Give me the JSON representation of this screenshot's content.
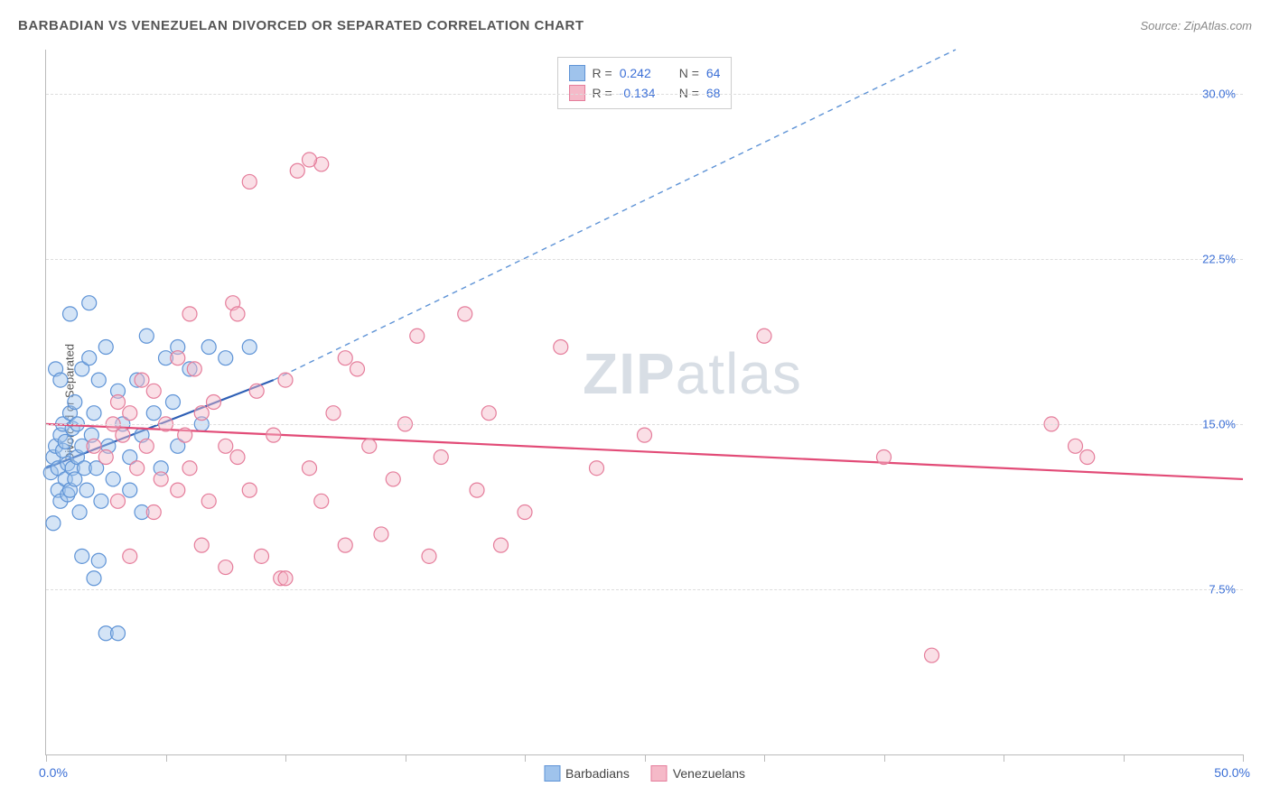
{
  "title": "BARBADIAN VS VENEZUELAN DIVORCED OR SEPARATED CORRELATION CHART",
  "source_label": "Source: ZipAtlas.com",
  "y_axis_label": "Divorced or Separated",
  "watermark_prefix": "ZIP",
  "watermark_suffix": "atlas",
  "chart": {
    "type": "scatter",
    "xlim": [
      0,
      50
    ],
    "ylim": [
      0,
      32
    ],
    "x_ticks": [
      0,
      5,
      10,
      15,
      20,
      25,
      30,
      35,
      40,
      45,
      50
    ],
    "x_min_label": "0.0%",
    "x_max_label": "50.0%",
    "y_ticks": [
      {
        "value": 7.5,
        "label": "7.5%"
      },
      {
        "value": 15.0,
        "label": "15.0%"
      },
      {
        "value": 22.5,
        "label": "22.5%"
      },
      {
        "value": 30.0,
        "label": "30.0%"
      }
    ],
    "background_color": "#ffffff",
    "grid_color": "#dddddd",
    "axis_color": "#bbbbbb",
    "tick_label_color": "#3b6fd6",
    "marker_radius": 8,
    "marker_opacity": 0.45,
    "marker_stroke_width": 1.2,
    "series": [
      {
        "name": "Barbadians",
        "fill_color": "#9fc3ec",
        "stroke_color": "#5e93d6",
        "trend_solid": {
          "x1": 0,
          "y1": 13.0,
          "x2": 9.5,
          "y2": 17.0,
          "color": "#2e5fb5",
          "width": 2.2
        },
        "trend_dashed": {
          "x1": 9.5,
          "y1": 17.0,
          "x2": 38,
          "y2": 32.0,
          "color": "#5e93d6",
          "width": 1.4,
          "dash": "6 5"
        },
        "R": "0.242",
        "N": "64",
        "points": [
          [
            0.2,
            12.8
          ],
          [
            0.3,
            13.5
          ],
          [
            0.4,
            14.0
          ],
          [
            0.5,
            13.0
          ],
          [
            0.5,
            12.0
          ],
          [
            0.6,
            14.5
          ],
          [
            0.6,
            11.5
          ],
          [
            0.7,
            15.0
          ],
          [
            0.7,
            13.8
          ],
          [
            0.8,
            12.5
          ],
          [
            0.8,
            14.2
          ],
          [
            0.9,
            13.2
          ],
          [
            0.9,
            11.8
          ],
          [
            1.0,
            15.5
          ],
          [
            1.0,
            12.0
          ],
          [
            1.1,
            14.8
          ],
          [
            1.1,
            13.0
          ],
          [
            1.2,
            16.0
          ],
          [
            1.2,
            12.5
          ],
          [
            1.3,
            13.5
          ],
          [
            1.3,
            15.0
          ],
          [
            1.4,
            11.0
          ],
          [
            1.5,
            14.0
          ],
          [
            1.5,
            17.5
          ],
          [
            1.6,
            13.0
          ],
          [
            1.7,
            12.0
          ],
          [
            1.8,
            18.0
          ],
          [
            1.9,
            14.5
          ],
          [
            2.0,
            15.5
          ],
          [
            2.1,
            13.0
          ],
          [
            2.2,
            17.0
          ],
          [
            2.3,
            11.5
          ],
          [
            2.5,
            18.5
          ],
          [
            2.6,
            14.0
          ],
          [
            2.8,
            12.5
          ],
          [
            3.0,
            16.5
          ],
          [
            3.2,
            15.0
          ],
          [
            3.5,
            13.5
          ],
          [
            3.8,
            17.0
          ],
          [
            4.0,
            14.5
          ],
          [
            4.2,
            19.0
          ],
          [
            4.5,
            15.5
          ],
          [
            4.8,
            13.0
          ],
          [
            5.0,
            18.0
          ],
          [
            5.3,
            16.0
          ],
          [
            5.5,
            14.0
          ],
          [
            6.0,
            17.5
          ],
          [
            6.5,
            15.0
          ],
          [
            1.0,
            20.0
          ],
          [
            1.8,
            20.5
          ],
          [
            2.0,
            8.0
          ],
          [
            2.5,
            5.5
          ],
          [
            3.0,
            5.5
          ],
          [
            0.4,
            17.5
          ],
          [
            0.6,
            17.0
          ],
          [
            0.3,
            10.5
          ],
          [
            1.5,
            9.0
          ],
          [
            2.2,
            8.8
          ],
          [
            3.5,
            12.0
          ],
          [
            4.0,
            11.0
          ],
          [
            5.5,
            18.5
          ],
          [
            6.8,
            18.5
          ],
          [
            7.5,
            18.0
          ],
          [
            8.5,
            18.5
          ]
        ]
      },
      {
        "name": "Venezuelans",
        "fill_color": "#f5b9c8",
        "stroke_color": "#e57d9b",
        "trend_solid": {
          "x1": 0,
          "y1": 15.0,
          "x2": 50,
          "y2": 12.5,
          "color": "#e24b77",
          "width": 2.2
        },
        "R": "-0.134",
        "N": "68",
        "points": [
          [
            2.0,
            14.0
          ],
          [
            2.5,
            13.5
          ],
          [
            3.0,
            16.0
          ],
          [
            3.2,
            14.5
          ],
          [
            3.5,
            15.5
          ],
          [
            3.8,
            13.0
          ],
          [
            4.0,
            17.0
          ],
          [
            4.2,
            14.0
          ],
          [
            4.5,
            16.5
          ],
          [
            4.8,
            12.5
          ],
          [
            5.0,
            15.0
          ],
          [
            5.5,
            18.0
          ],
          [
            5.8,
            14.5
          ],
          [
            6.0,
            13.0
          ],
          [
            6.2,
            17.5
          ],
          [
            6.5,
            15.5
          ],
          [
            6.8,
            11.5
          ],
          [
            7.0,
            16.0
          ],
          [
            7.5,
            14.0
          ],
          [
            7.8,
            20.5
          ],
          [
            8.0,
            13.5
          ],
          [
            8.5,
            12.0
          ],
          [
            8.8,
            16.5
          ],
          [
            9.0,
            9.0
          ],
          [
            9.5,
            14.5
          ],
          [
            9.8,
            8.0
          ],
          [
            10.0,
            17.0
          ],
          [
            10.5,
            26.5
          ],
          [
            11.0,
            13.0
          ],
          [
            11.5,
            11.5
          ],
          [
            12.0,
            15.5
          ],
          [
            12.5,
            9.5
          ],
          [
            13.0,
            17.5
          ],
          [
            13.5,
            14.0
          ],
          [
            14.0,
            10.0
          ],
          [
            14.5,
            12.5
          ],
          [
            15.0,
            15.0
          ],
          [
            15.5,
            19.0
          ],
          [
            16.0,
            9.0
          ],
          [
            16.5,
            13.5
          ],
          [
            17.5,
            20.0
          ],
          [
            18.0,
            12.0
          ],
          [
            18.5,
            15.5
          ],
          [
            19.0,
            9.5
          ],
          [
            20.0,
            11.0
          ],
          [
            21.5,
            18.5
          ],
          [
            23.0,
            13.0
          ],
          [
            25.0,
            14.5
          ],
          [
            30.0,
            19.0
          ],
          [
            35.0,
            13.5
          ],
          [
            37.0,
            4.5
          ],
          [
            42.0,
            15.0
          ],
          [
            43.0,
            14.0
          ],
          [
            43.5,
            13.5
          ],
          [
            8.5,
            26.0
          ],
          [
            11.5,
            26.8
          ],
          [
            6.0,
            20.0
          ],
          [
            7.5,
            8.5
          ],
          [
            10.0,
            8.0
          ],
          [
            11.0,
            27.0
          ],
          [
            5.5,
            12.0
          ],
          [
            4.5,
            11.0
          ],
          [
            3.0,
            11.5
          ],
          [
            2.8,
            15.0
          ],
          [
            3.5,
            9.0
          ],
          [
            6.5,
            9.5
          ],
          [
            8.0,
            20.0
          ],
          [
            12.5,
            18.0
          ]
        ]
      }
    ]
  },
  "legend_top": {
    "R_label": "R =",
    "N_label": "N =",
    "R_color": "#3b6fd6",
    "N_color": "#3b6fd6",
    "text_color": "#555555"
  },
  "legend_bottom_labels": [
    "Barbadians",
    "Venezuelans"
  ]
}
